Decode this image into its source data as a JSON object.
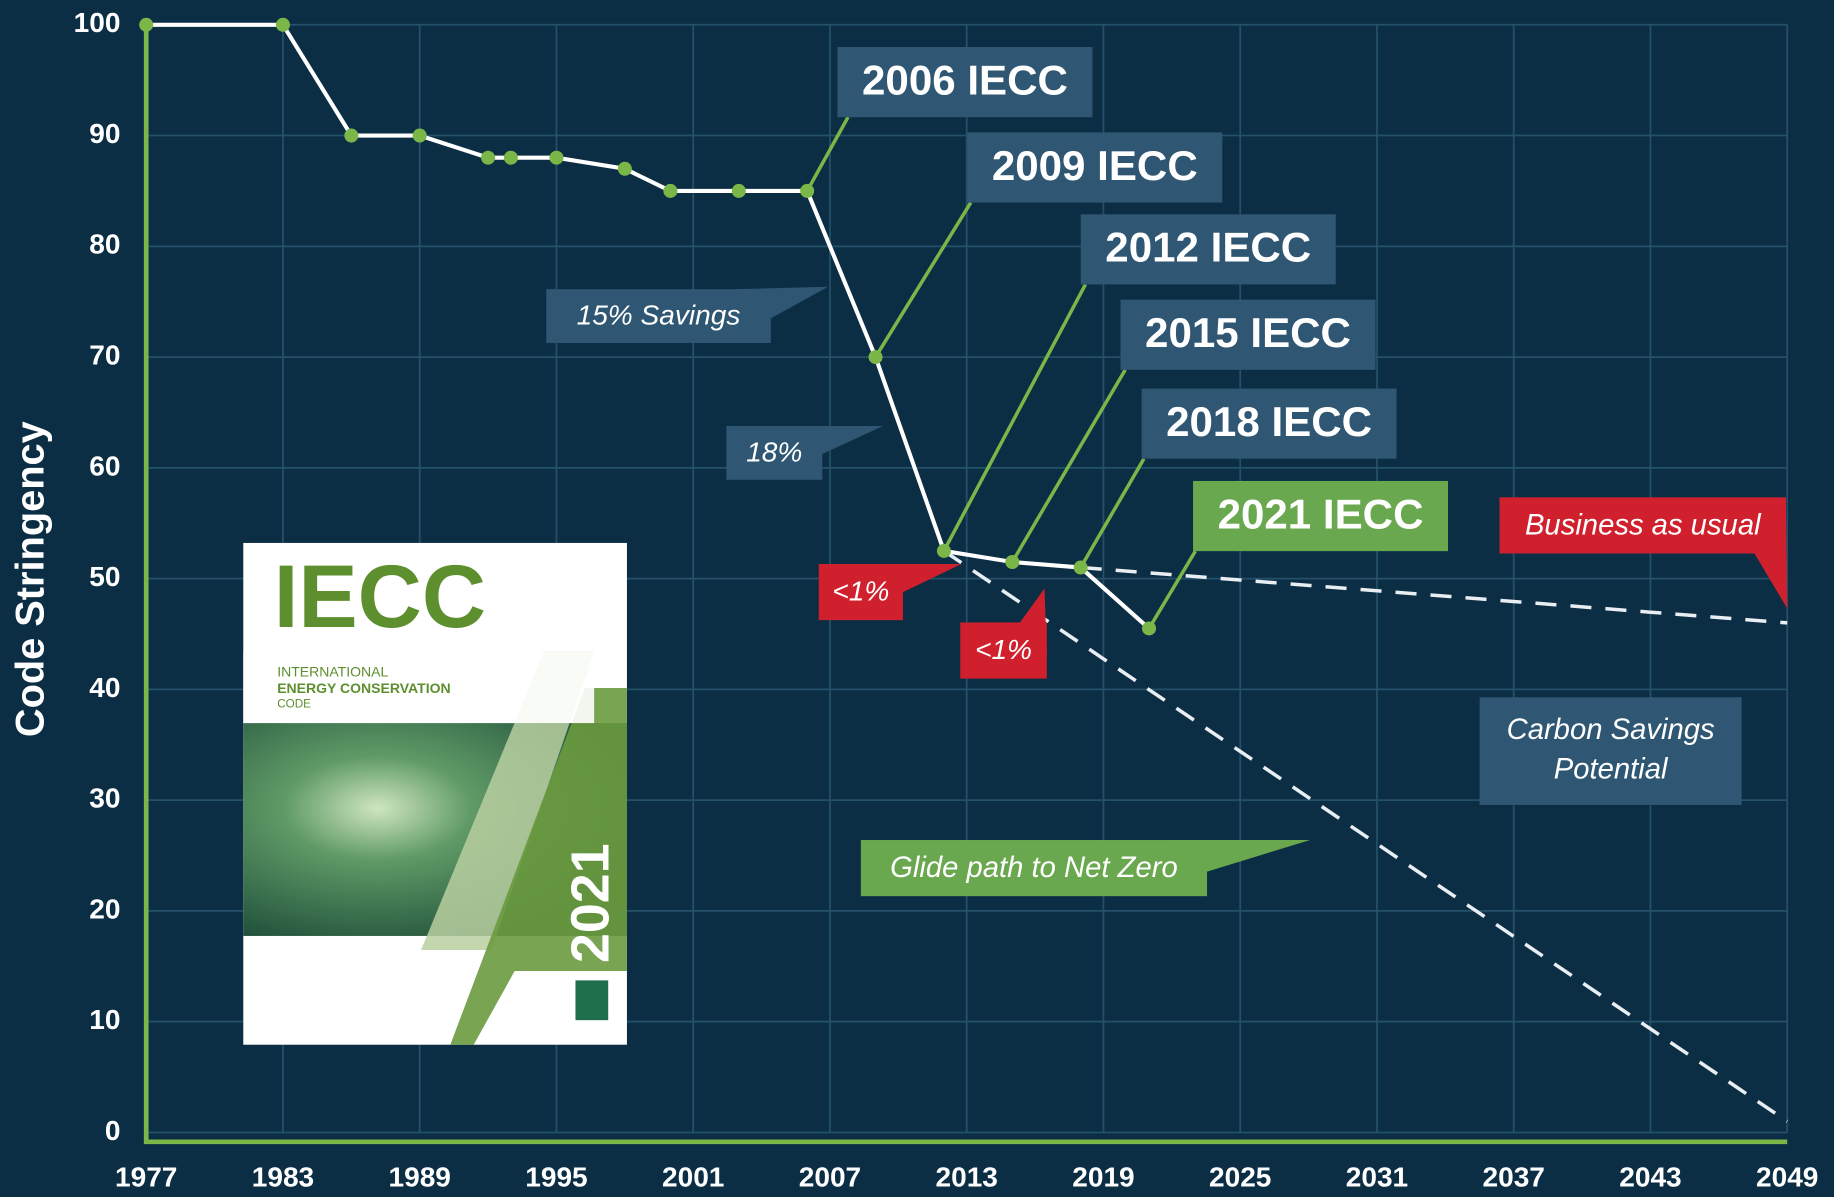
{
  "chart_data": {
    "type": "line",
    "ylabel": "Code Stringency",
    "x": [
      1977,
      1983,
      1986,
      1989,
      1992,
      1993,
      1995,
      1998,
      2000,
      2003,
      2006,
      2009,
      2012,
      2015,
      2018,
      2021
    ],
    "values": [
      100,
      100,
      90,
      90,
      88,
      88,
      88,
      87,
      85,
      85,
      85,
      70,
      52.5,
      51.5,
      51,
      45.5
    ],
    "color": "#ffffff",
    "marker_color": "#7ab648",
    "dashed_lines": [
      {
        "x": [
          2018,
          2049
        ],
        "values": [
          51,
          46
        ]
      },
      {
        "x": [
          2012,
          2049
        ],
        "values": [
          52.5,
          1
        ]
      }
    ],
    "xlim": [
      1977,
      2049
    ],
    "xticks": [
      1977,
      1983,
      1989,
      1995,
      2001,
      2007,
      2013,
      2019,
      2025,
      2031,
      2037,
      2043,
      2049
    ],
    "ylim": [
      0,
      100
    ],
    "yticks": [
      0,
      10,
      20,
      30,
      40,
      50,
      60,
      70,
      80,
      90,
      100
    ],
    "grid": true,
    "annotations": [
      {
        "text": "2006 IECC"
      },
      {
        "text": "2009 IECC"
      },
      {
        "text": "2012 IECC"
      },
      {
        "text": "2015 IECC"
      },
      {
        "text": "2018 IECC"
      },
      {
        "text": "2021 IECC"
      },
      {
        "text": "15% Savings"
      },
      {
        "text": "18%"
      },
      {
        "text": "<1%"
      },
      {
        "text": "<1%"
      },
      {
        "text": "Business as usual"
      },
      {
        "text": [
          "Carbon Savings",
          "Potential"
        ]
      },
      {
        "text": "Glide path to Net Zero"
      }
    ]
  },
  "cover": {
    "title": "IECC",
    "lines": [
      "INTERNATIONAL",
      "ENERGY CONSERVATION",
      "CODE"
    ],
    "year": "2021"
  }
}
